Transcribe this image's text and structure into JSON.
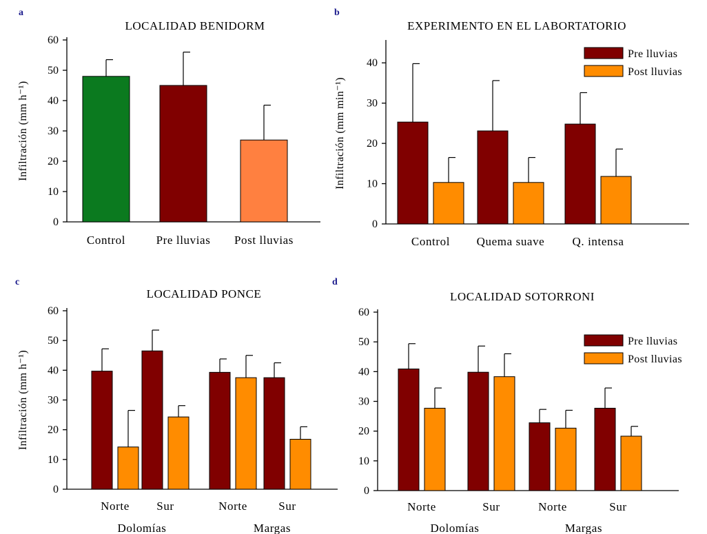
{
  "colors": {
    "control_green": "#0b7a1f",
    "pre": "#800000",
    "post": "#ff8c00",
    "post_light": "#ff8040"
  },
  "chart_data": [
    {
      "panel": "a",
      "type": "bar",
      "title": "LOCALIDAD BENIDORM",
      "ylabel": "Infiltración (mm h⁻¹)",
      "ylim": [
        0,
        60
      ],
      "yticks": [
        0,
        10,
        20,
        30,
        40,
        50,
        60
      ],
      "categories": [
        "Control",
        "Pre lluvias",
        "Post lluvias"
      ],
      "values": [
        48,
        45,
        27
      ],
      "errors": [
        5.5,
        11,
        11.5
      ],
      "bar_colors": [
        "#0b7a1f",
        "#800000",
        "#ff8040"
      ]
    },
    {
      "panel": "b",
      "type": "bar",
      "title": "EXPERIMENTO EN EL LABORTATORIO",
      "ylabel": "Infiltración (mm min⁻¹)",
      "ylim": [
        0,
        45
      ],
      "yticks": [
        0,
        10,
        20,
        30,
        40
      ],
      "categories": [
        "Control",
        "Quema suave",
        "Q. intensa"
      ],
      "series": [
        {
          "name": "Pre lluvias",
          "color": "#800000",
          "values": [
            25.3,
            23.1,
            24.8
          ],
          "errors": [
            14.5,
            12.5,
            7.8
          ]
        },
        {
          "name": "Post lluvias",
          "color": "#ff8c00",
          "values": [
            10.3,
            10.3,
            11.8
          ],
          "errors": [
            6.2,
            6.2,
            6.8
          ]
        }
      ],
      "legend": "top-right"
    },
    {
      "panel": "c",
      "type": "bar",
      "title": "LOCALIDAD PONCE",
      "ylabel": "Infiltración (mm h⁻¹)",
      "ylim": [
        0,
        60
      ],
      "yticks": [
        0,
        10,
        20,
        30,
        40,
        50,
        60
      ],
      "categories": [
        "Norte",
        "Sur",
        "Norte",
        "Sur"
      ],
      "groups": [
        "Dolomías",
        "Margas"
      ],
      "series": [
        {
          "name": "Pre lluvias",
          "color": "#800000",
          "values": [
            39.7,
            46.5,
            39.3,
            37.5
          ],
          "errors": [
            7.5,
            7,
            4.5,
            5
          ]
        },
        {
          "name": "Post lluvias",
          "color": "#ff8c00",
          "values": [
            14.2,
            24.3,
            37.5,
            16.8
          ],
          "errors": [
            12.3,
            3.8,
            7.5,
            4.2
          ]
        }
      ]
    },
    {
      "panel": "d",
      "type": "bar",
      "title": "LOCALIDAD SOTORRONI",
      "ylabel": "",
      "ylim": [
        0,
        60
      ],
      "yticks": [
        0,
        10,
        20,
        30,
        40,
        50,
        60
      ],
      "categories": [
        "Norte",
        "Sur",
        "Norte",
        "Sur"
      ],
      "groups": [
        "Dolomías",
        "Margas"
      ],
      "series": [
        {
          "name": "Pre lluvias",
          "color": "#800000",
          "values": [
            40.9,
            39.8,
            22.8,
            27.7
          ],
          "errors": [
            8.5,
            8.8,
            4.5,
            6.8
          ]
        },
        {
          "name": "Post lluvias",
          "color": "#ff8c00",
          "values": [
            27.7,
            38.3,
            21.0,
            18.3
          ],
          "errors": [
            6.8,
            7.7,
            6,
            3.3
          ]
        }
      ],
      "legend": "top-right"
    }
  ]
}
